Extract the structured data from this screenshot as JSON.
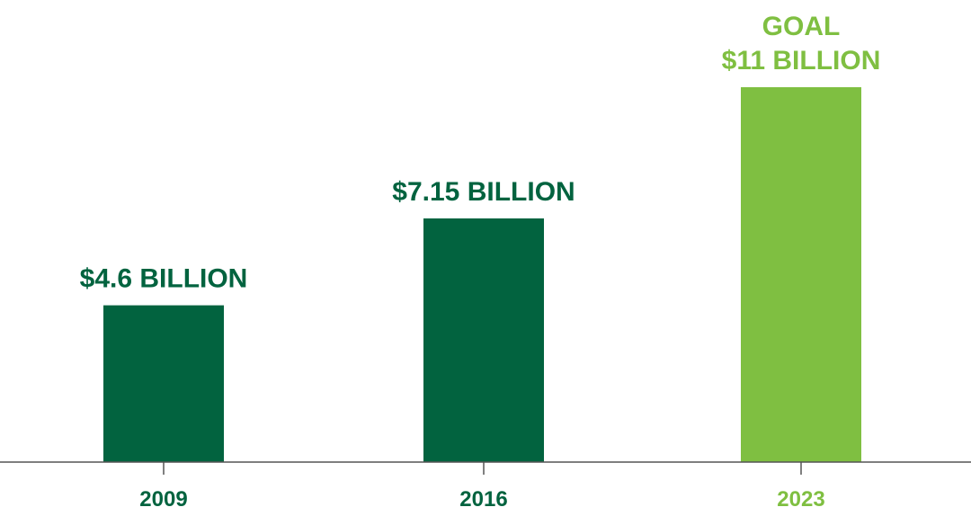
{
  "chart_data": {
    "type": "bar",
    "categories": [
      "2009",
      "2016",
      "2023"
    ],
    "values": [
      4.6,
      7.15,
      11
    ],
    "value_labels": [
      "$4.6 BILLION",
      "$7.15 BILLION",
      "$11 BILLION"
    ],
    "label_prefixes": [
      "",
      "",
      "GOAL"
    ],
    "title": "",
    "xlabel": "",
    "ylabel": "",
    "ylim": [
      0,
      11
    ],
    "grid": false,
    "legend": "none",
    "colors": {
      "actual": "#02633f",
      "goal": "#7fbf41",
      "axis": "#555555"
    },
    "bar_colors": [
      "#02633f",
      "#02633f",
      "#7fbf41"
    ]
  }
}
